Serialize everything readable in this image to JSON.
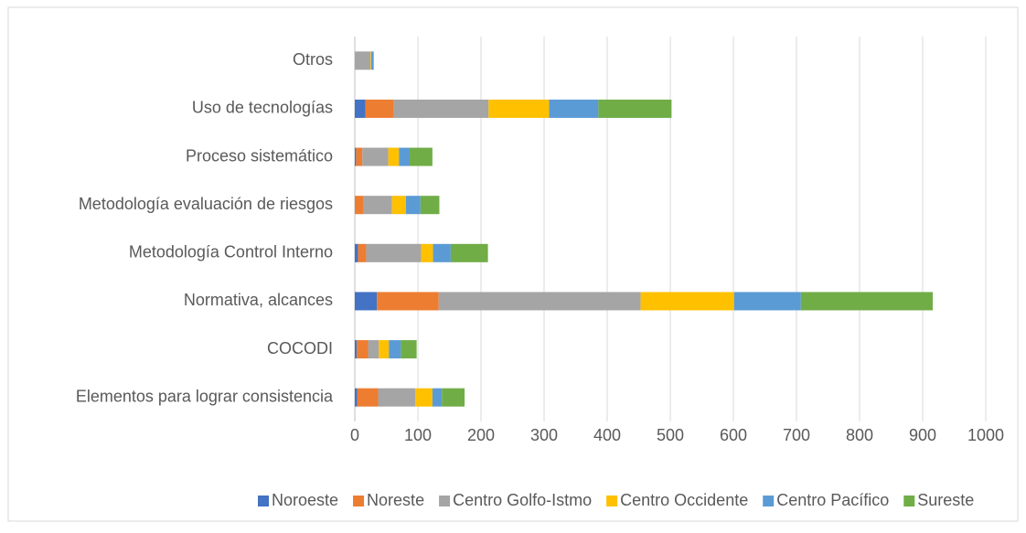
{
  "chart_data": {
    "type": "stacked-barh",
    "categories": [
      "Elementos para lograr consistencia",
      "COCODI",
      "Normativa, alcances",
      "Metodología Control Interno",
      "Metodología evaluación de riesgos",
      "Proceso sistemático",
      "Uso de tecnologías",
      "Otros"
    ],
    "series": [
      {
        "name": "Noroeste",
        "color": "#4472c4",
        "values": [
          4,
          3,
          35,
          5,
          0,
          2,
          17,
          0
        ]
      },
      {
        "name": "Noreste",
        "color": "#ed7d31",
        "values": [
          33,
          18,
          98,
          13,
          14,
          10,
          45,
          0
        ]
      },
      {
        "name": "Centro Golfo-Istmo",
        "color": "#a5a5a5",
        "values": [
          59,
          17,
          320,
          87,
          45,
          41,
          150,
          25
        ]
      },
      {
        "name": "Centro Occidente",
        "color": "#ffc000",
        "values": [
          27,
          16,
          148,
          19,
          22,
          17,
          96,
          1
        ]
      },
      {
        "name": "Centro Pacífico",
        "color": "#5b9bd5",
        "values": [
          15,
          19,
          106,
          28,
          23,
          17,
          78,
          3
        ]
      },
      {
        "name": "Sureste",
        "color": "#70ad47",
        "values": [
          36,
          25,
          209,
          59,
          30,
          36,
          116,
          1
        ]
      }
    ],
    "xlim": [
      0,
      1000
    ],
    "xticks": [
      0,
      100,
      200,
      300,
      400,
      500,
      600,
      700,
      800,
      900,
      1000
    ],
    "grid": true,
    "legend": "bottom"
  }
}
